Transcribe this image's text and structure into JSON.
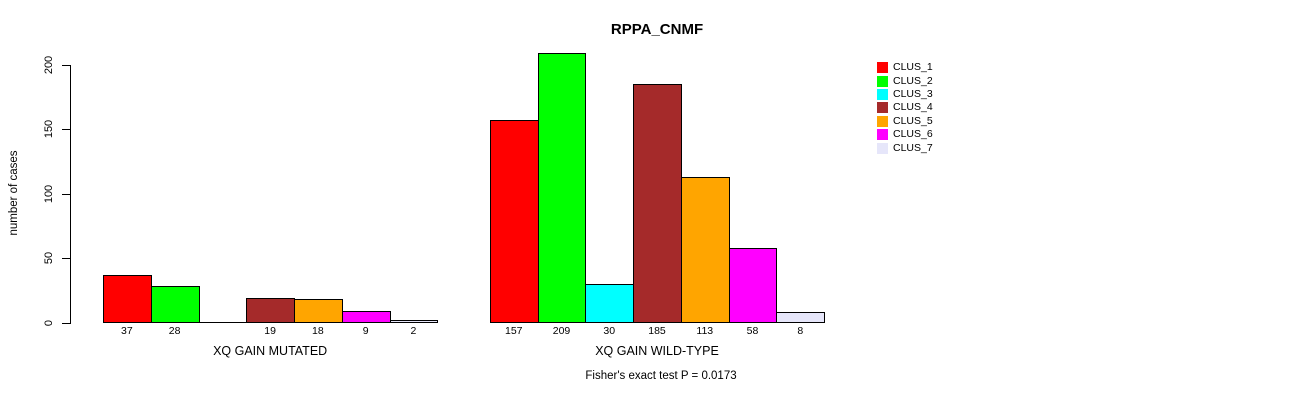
{
  "title": "RPPA_CNMF",
  "caption": "Fisher's exact test P = 0.0173",
  "y_axis": {
    "label": "number of cases",
    "ticks": [
      0,
      50,
      100,
      150,
      200
    ]
  },
  "legend": {
    "items": [
      {
        "label": "CLUS_1",
        "color": "#FF0000"
      },
      {
        "label": "CLUS_2",
        "color": "#00FF00"
      },
      {
        "label": "CLUS_3",
        "color": "#00FFFF"
      },
      {
        "label": "CLUS_4",
        "color": "#A52A2A"
      },
      {
        "label": "CLUS_5",
        "color": "#FFA500"
      },
      {
        "label": "CLUS_6",
        "color": "#FF00FF"
      },
      {
        "label": "CLUS_7",
        "color": "#E6E6FA"
      }
    ]
  },
  "chart_data": {
    "type": "bar",
    "title": "RPPA_CNMF",
    "xlabel": "",
    "ylabel": "number of cases",
    "ylim": [
      0,
      200
    ],
    "yticks": [
      0,
      50,
      100,
      150,
      200
    ],
    "grid": false,
    "legend_position": "right",
    "categories": [
      "CLUS_1",
      "CLUS_2",
      "CLUS_3",
      "CLUS_4",
      "CLUS_5",
      "CLUS_6",
      "CLUS_7"
    ],
    "colors": [
      "#FF0000",
      "#00FF00",
      "#00FFFF",
      "#A52A2A",
      "#FFA500",
      "#FF00FF",
      "#E6E6FA"
    ],
    "groups": [
      {
        "label": "XQ GAIN MUTATED",
        "values": [
          37,
          28,
          0,
          19,
          18,
          9,
          2
        ],
        "bar_labels": [
          "37",
          "28",
          "",
          "19",
          "18",
          "9",
          "2"
        ]
      },
      {
        "label": "XQ GAIN WILD-TYPE",
        "values": [
          157,
          209,
          30,
          185,
          113,
          58,
          8
        ],
        "bar_labels": [
          "157",
          "209",
          "30",
          "185",
          "113",
          "58",
          "8"
        ]
      }
    ],
    "annotation": "Fisher's exact test P = 0.0173"
  }
}
